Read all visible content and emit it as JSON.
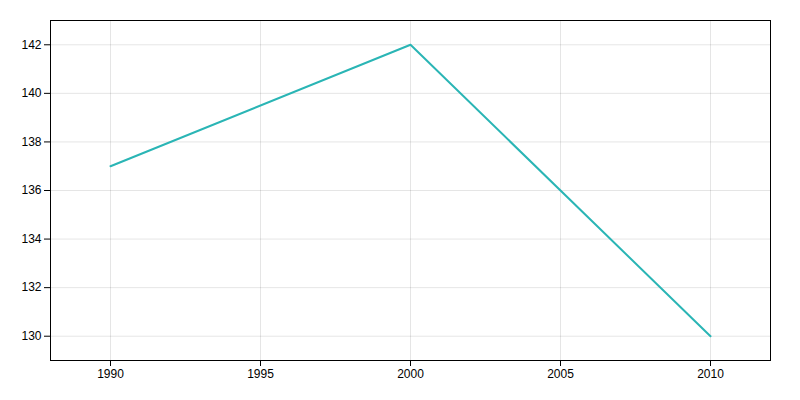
{
  "chart_data": {
    "type": "line",
    "x": [
      1990,
      2000,
      2010
    ],
    "values": [
      137,
      142,
      130
    ],
    "color": "#2ab5b5",
    "xlim": [
      1988,
      2012
    ],
    "ylim": [
      129,
      143
    ],
    "xticks": [
      1990,
      1995,
      2000,
      2005,
      2010
    ],
    "yticks": [
      130,
      132,
      134,
      136,
      138,
      140,
      142
    ],
    "grid": true
  }
}
